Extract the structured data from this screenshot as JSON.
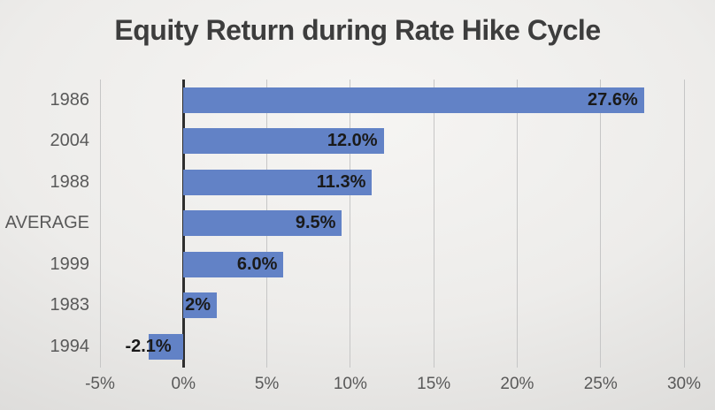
{
  "chart_data": {
    "type": "bar",
    "orientation": "horizontal",
    "title": "Equity Return during Rate Hike Cycle",
    "categories": [
      "1986",
      "2004",
      "1988",
      "AVERAGE",
      "1999",
      "1983",
      "1994"
    ],
    "values": [
      27.6,
      12.0,
      11.3,
      9.5,
      6.0,
      2,
      -2.1
    ],
    "data_labels": [
      "27.6%",
      "12.0%",
      "11.3%",
      "9.5%",
      "6.0%",
      "2%",
      "-2.1%"
    ],
    "x_tick_labels": [
      "-5%",
      "0%",
      "5%",
      "10%",
      "15%",
      "20%",
      "25%",
      "30%"
    ],
    "x_tick_values": [
      -5,
      0,
      5,
      10,
      15,
      20,
      25,
      30
    ],
    "xlim": [
      -5,
      30
    ],
    "grid": true,
    "legend": false,
    "colors": {
      "bar": "#6282C6",
      "gridline": "#c6c6c6",
      "zero_axis": "#2e2e2e",
      "data_label": "#1a1a1a",
      "axis_text": "#595959",
      "title_text": "#3d3d3d"
    }
  }
}
